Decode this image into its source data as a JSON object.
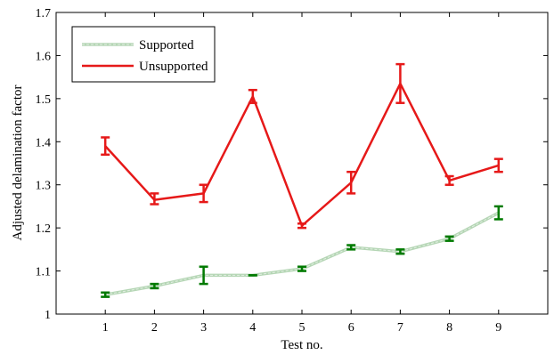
{
  "chart_data": {
    "type": "line",
    "title": "",
    "xlabel": "Test no.",
    "ylabel": "Adjusted delamination factor",
    "x": [
      1,
      2,
      3,
      4,
      5,
      6,
      7,
      8,
      9
    ],
    "xlim": [
      0,
      10
    ],
    "ylim": [
      1,
      1.7
    ],
    "xticks": [
      "1",
      "2",
      "3",
      "4",
      "5",
      "6",
      "7",
      "8",
      "9"
    ],
    "yticks": [
      "1",
      "1.1",
      "1.2",
      "1.3",
      "1.4",
      "1.5",
      "1.6",
      "1.7"
    ],
    "grid": false,
    "legend_position": "top-left",
    "series": [
      {
        "name": "Supported",
        "color": "#b5d6b5",
        "errorbar_color": "#007a00",
        "values": [
          1.045,
          1.065,
          1.09,
          1.09,
          1.105,
          1.155,
          1.145,
          1.175,
          1.235
        ],
        "err_low": [
          1.04,
          1.06,
          1.07,
          1.09,
          1.1,
          1.15,
          1.14,
          1.17,
          1.22
        ],
        "err_high": [
          1.05,
          1.07,
          1.11,
          1.09,
          1.11,
          1.16,
          1.15,
          1.18,
          1.25
        ]
      },
      {
        "name": "Unsupported",
        "color": "#e61919",
        "errorbar_color": "#e61919",
        "values": [
          1.39,
          1.265,
          1.28,
          1.505,
          1.205,
          1.305,
          1.535,
          1.31,
          1.345
        ],
        "err_low": [
          1.37,
          1.255,
          1.26,
          1.49,
          1.2,
          1.28,
          1.49,
          1.3,
          1.33
        ],
        "err_high": [
          1.41,
          1.28,
          1.3,
          1.52,
          1.21,
          1.33,
          1.58,
          1.32,
          1.36
        ]
      }
    ]
  }
}
